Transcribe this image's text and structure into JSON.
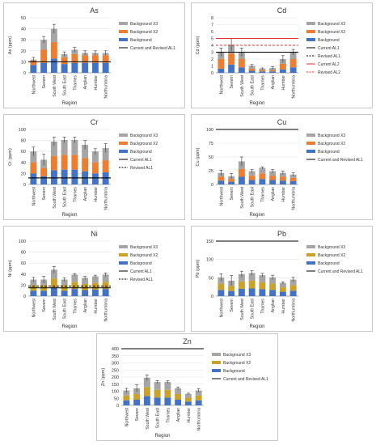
{
  "chart_data": [
    {
      "type": "bar",
      "title": "As",
      "xlabel": "Region",
      "ylabel": "As (ppm)",
      "categories": [
        "Northwest",
        "Severn",
        "South West",
        "South East",
        "Thames",
        "Anglian",
        "Humber",
        "Northumbria"
      ],
      "ylim": [
        0,
        50
      ],
      "yticks": [
        0,
        10,
        20,
        30,
        40,
        50
      ],
      "series": [
        {
          "name": "Background",
          "color": "#4472c4",
          "values": [
            7,
            9,
            13,
            8,
            9,
            9,
            9,
            9
          ]
        },
        {
          "name": "Background X2",
          "color": "#ed7d31",
          "values": [
            4,
            12,
            15,
            6,
            8,
            7,
            7,
            7
          ]
        },
        {
          "name": "Background X3",
          "color": "#a5a5a5",
          "values": [
            1,
            9,
            12,
            3,
            4,
            2,
            2,
            2
          ]
        }
      ],
      "errors": [
        2,
        3,
        4,
        2,
        2,
        2,
        2,
        2
      ],
      "lines": [
        {
          "name": "Current and Revised AL1",
          "value": 10,
          "color": "#000000",
          "dash": false
        }
      ]
    },
    {
      "type": "bar",
      "title": "Cd",
      "xlabel": "Region",
      "ylabel": "Cd (ppm)",
      "categories": [
        "Northwest",
        "Severn",
        "South West",
        "South East",
        "Thames",
        "Anglian",
        "Humber",
        "Northumbria"
      ],
      "ylim": [
        0,
        8
      ],
      "yticks": [
        0,
        1,
        2,
        3,
        4,
        5,
        6,
        7,
        8
      ],
      "series": [
        {
          "name": "Background",
          "color": "#4472c4",
          "values": [
            0.6,
            1.2,
            0.8,
            0.3,
            0.2,
            0.2,
            0.5,
            0.8
          ]
        },
        {
          "name": "Background X2",
          "color": "#ed7d31",
          "values": [
            1.4,
            1.6,
            1.2,
            0.3,
            0.2,
            0.2,
            0.8,
            1.2
          ]
        },
        {
          "name": "Background X3",
          "color": "#a5a5a5",
          "values": [
            1.0,
            1.3,
            1.0,
            0.4,
            0.2,
            0.3,
            0.7,
            1.0
          ]
        }
      ],
      "errors": [
        0.6,
        0.9,
        0.6,
        0.2,
        0.1,
        0.2,
        0.5,
        0.4
      ],
      "lines": [
        {
          "name": "Current AL1",
          "value": 3,
          "color": "#000000",
          "dash": false
        },
        {
          "name": "Revised AL1",
          "value": 3,
          "color": "#000000",
          "dash": true
        },
        {
          "name": "Current AL2",
          "value": 5,
          "color": "#e03030",
          "dash": false
        },
        {
          "name": "Revised AL2",
          "value": 4,
          "color": "#e03030",
          "dash": true
        }
      ]
    },
    {
      "type": "bar",
      "title": "Cr",
      "xlabel": "Region",
      "ylabel": "Cr (ppm)",
      "categories": [
        "Northwest",
        "Severn",
        "South West",
        "South East",
        "Thames",
        "Anglian",
        "Humber",
        "Northumbria"
      ],
      "ylim": [
        0,
        100
      ],
      "yticks": [
        0,
        20,
        40,
        60,
        80,
        100
      ],
      "series": [
        {
          "name": "Background",
          "color": "#4472c4",
          "values": [
            20,
            15,
            26,
            27,
            27,
            24,
            20,
            22
          ]
        },
        {
          "name": "Background X2",
          "color": "#ed7d31",
          "values": [
            20,
            15,
            26,
            27,
            27,
            24,
            20,
            22
          ]
        },
        {
          "name": "Background X3",
          "color": "#a5a5a5",
          "values": [
            20,
            15,
            26,
            27,
            27,
            24,
            20,
            22
          ]
        }
      ],
      "errors": [
        8,
        10,
        8,
        5,
        5,
        8,
        5,
        8
      ],
      "lines": [
        {
          "name": "Current AL1",
          "value": 12,
          "color": "#000000",
          "dash": false
        },
        {
          "name": "Revised AL1",
          "value": 12,
          "color": "#000000",
          "dash": true
        }
      ]
    },
    {
      "type": "bar",
      "title": "Cu",
      "xlabel": "Region",
      "ylabel": "Cu (ppm)",
      "categories": [
        "Northwest",
        "Severn",
        "South West",
        "South East",
        "Thames",
        "Anglian",
        "Humber",
        "Northumbria"
      ],
      "ylim": [
        0,
        100
      ],
      "yticks": [
        0,
        25,
        50,
        75,
        100
      ],
      "series": [
        {
          "name": "Background",
          "color": "#4472c4",
          "values": [
            7,
            5,
            14,
            8,
            10,
            8,
            7,
            6
          ]
        },
        {
          "name": "Background X2",
          "color": "#ed7d31",
          "values": [
            7,
            5,
            14,
            8,
            10,
            8,
            7,
            6
          ]
        },
        {
          "name": "Background X3",
          "color": "#a5a5a5",
          "values": [
            7,
            5,
            14,
            8,
            10,
            8,
            7,
            6
          ]
        }
      ],
      "errors": [
        5,
        5,
        8,
        3,
        2,
        3,
        3,
        3
      ],
      "lines": [
        {
          "name": "Current and Revised AL1",
          "value": 100,
          "color": "#000000",
          "dash": false
        }
      ]
    },
    {
      "type": "bar",
      "title": "Ni",
      "xlabel": "Region",
      "ylabel": "Ni (ppm)",
      "categories": [
        "Northwest",
        "Severn",
        "South West",
        "South East",
        "Thames",
        "Anglian",
        "Humber",
        "Northumbria"
      ],
      "ylim": [
        0,
        100
      ],
      "yticks": [
        0,
        20,
        40,
        60,
        80,
        100
      ],
      "series": [
        {
          "name": "Background",
          "color": "#4472c4",
          "values": [
            10,
            10,
            16,
            10,
            13,
            11,
            12,
            13
          ]
        },
        {
          "name": "Background X2",
          "color": "#c9a227",
          "values": [
            10,
            10,
            16,
            10,
            13,
            11,
            12,
            13
          ]
        },
        {
          "name": "Background X3",
          "color": "#a5a5a5",
          "values": [
            10,
            10,
            16,
            10,
            13,
            11,
            12,
            13
          ]
        }
      ],
      "errors": [
        4,
        6,
        6,
        3,
        2,
        3,
        2,
        3
      ],
      "lines": [
        {
          "name": "Current AL1",
          "value": 15,
          "color": "#000000",
          "dash": false
        },
        {
          "name": "Revised AL1",
          "value": 18,
          "color": "#000000",
          "dash": true
        }
      ]
    },
    {
      "type": "bar",
      "title": "Pb",
      "xlabel": "Region",
      "ylabel": "Pb (ppm)",
      "categories": [
        "Northwest",
        "Severn",
        "South West",
        "South East",
        "Thames",
        "Anglian",
        "Humber",
        "Northumbria"
      ],
      "ylim": [
        0,
        150
      ],
      "yticks": [
        0,
        50,
        100,
        150
      ],
      "series": [
        {
          "name": "Background",
          "color": "#4472c4",
          "values": [
            17,
            14,
            20,
            21,
            19,
            17,
            12,
            15
          ]
        },
        {
          "name": "Background X2",
          "color": "#c9a227",
          "values": [
            17,
            14,
            20,
            21,
            19,
            17,
            12,
            15
          ]
        },
        {
          "name": "Background X3",
          "color": "#a5a5a5",
          "values": [
            17,
            14,
            20,
            21,
            19,
            17,
            12,
            15
          ]
        }
      ],
      "errors": [
        10,
        14,
        8,
        6,
        5,
        6,
        3,
        6
      ],
      "lines": [
        {
          "name": "Current and Revised AL1",
          "value": 150,
          "color": "#000000",
          "dash": false
        }
      ]
    },
    {
      "type": "bar",
      "title": "Zn",
      "xlabel": "Region",
      "ylabel": "Zn (ppm)",
      "categories": [
        "Northwest",
        "Severn",
        "South West",
        "South East",
        "Thames",
        "Anglian",
        "Humber",
        "Northumbria"
      ],
      "ylim": [
        0,
        400
      ],
      "yticks": [
        0,
        50,
        100,
        150,
        200,
        250,
        300,
        350,
        400
      ],
      "series": [
        {
          "name": "Background",
          "color": "#4472c4",
          "values": [
            35,
            40,
            65,
            55,
            55,
            40,
            27,
            35
          ]
        },
        {
          "name": "Background X2",
          "color": "#c9a227",
          "values": [
            35,
            40,
            65,
            55,
            55,
            40,
            27,
            35
          ]
        },
        {
          "name": "Background X3",
          "color": "#a5a5a5",
          "values": [
            35,
            40,
            65,
            55,
            55,
            40,
            27,
            35
          ]
        }
      ],
      "errors": [
        15,
        25,
        20,
        10,
        8,
        10,
        5,
        12
      ],
      "lines": [
        {
          "name": "Current and Revised AL1",
          "value": 400,
          "color": "#000000",
          "dash": false
        }
      ]
    }
  ]
}
